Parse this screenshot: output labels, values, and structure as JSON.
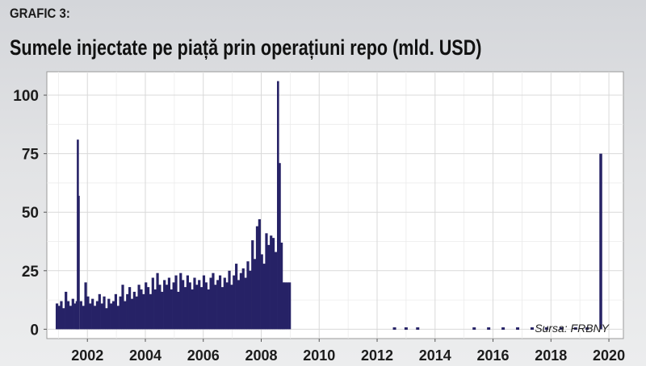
{
  "header": {
    "label": "GRAFIC 3:",
    "title": "Sumele injectate pe piață prin operațiuni repo (mld. USD)"
  },
  "chart_data": {
    "type": "bar",
    "title": "Sumele injectate pe piață prin operațiuni repo (mld. USD)",
    "xlabel": "",
    "ylabel": "",
    "source": "Sursa: FRBNY",
    "xlim": [
      2000.6,
      2020.5
    ],
    "ylim": [
      -4,
      110
    ],
    "xticks": [
      2002,
      2004,
      2006,
      2008,
      2010,
      2012,
      2014,
      2016,
      2018,
      2020
    ],
    "yticks": [
      0,
      25,
      50,
      75,
      100
    ],
    "grid": true,
    "bar_color": "#262266",
    "x": [
      2000.95,
      2001.02,
      2001.1,
      2001.18,
      2001.26,
      2001.34,
      2001.42,
      2001.5,
      2001.58,
      2001.64,
      2001.67,
      2001.7,
      2001.78,
      2001.86,
      2001.94,
      2002.02,
      2002.1,
      2002.18,
      2002.26,
      2002.34,
      2002.42,
      2002.5,
      2002.58,
      2002.66,
      2002.74,
      2002.82,
      2002.9,
      2002.98,
      2003.06,
      2003.14,
      2003.22,
      2003.3,
      2003.38,
      2003.46,
      2003.54,
      2003.62,
      2003.7,
      2003.78,
      2003.86,
      2003.94,
      2004.02,
      2004.1,
      2004.18,
      2004.26,
      2004.34,
      2004.42,
      2004.5,
      2004.58,
      2004.66,
      2004.74,
      2004.82,
      2004.9,
      2004.98,
      2005.06,
      2005.14,
      2005.22,
      2005.3,
      2005.38,
      2005.46,
      2005.54,
      2005.62,
      2005.7,
      2005.78,
      2005.86,
      2005.94,
      2006.02,
      2006.1,
      2006.18,
      2006.26,
      2006.34,
      2006.42,
      2006.5,
      2006.58,
      2006.66,
      2006.74,
      2006.82,
      2006.9,
      2006.98,
      2007.06,
      2007.14,
      2007.22,
      2007.3,
      2007.38,
      2007.46,
      2007.54,
      2007.62,
      2007.7,
      2007.78,
      2007.86,
      2007.94,
      2008.02,
      2008.1,
      2008.18,
      2008.26,
      2008.34,
      2008.42,
      2008.5,
      2008.58,
      2008.64,
      2008.7,
      2008.76,
      2008.82,
      2008.9,
      2008.98,
      2012.6,
      2013.0,
      2013.4,
      2015.35,
      2015.85,
      2016.35,
      2016.85,
      2017.35,
      2017.85,
      2018.35,
      2018.85,
      2019.25,
      2019.72
    ],
    "values": [
      11,
      10,
      12,
      9,
      16,
      12,
      10,
      13,
      11,
      12,
      81,
      57,
      12,
      10,
      20,
      14,
      11,
      13,
      10,
      12,
      15,
      11,
      14,
      9,
      13,
      11,
      12,
      15,
      10,
      14,
      19,
      12,
      15,
      18,
      13,
      16,
      14,
      19,
      17,
      15,
      20,
      18,
      15,
      22,
      17,
      24,
      19,
      16,
      21,
      19,
      22,
      17,
      20,
      23,
      16,
      24,
      21,
      18,
      23,
      20,
      17,
      22,
      19,
      21,
      18,
      23,
      20,
      17,
      22,
      24,
      19,
      21,
      23,
      18,
      22,
      20,
      25,
      19,
      23,
      28,
      21,
      24,
      26,
      22,
      29,
      25,
      38,
      30,
      44,
      47,
      32,
      28,
      41,
      36,
      40,
      39,
      33,
      106,
      71,
      37,
      20,
      20,
      20,
      20,
      0.8,
      0.8,
      0.8,
      0.8,
      0.8,
      0.8,
      0.8,
      0.8,
      0.8,
      0.8,
      0.8,
      0.8,
      75
    ]
  }
}
